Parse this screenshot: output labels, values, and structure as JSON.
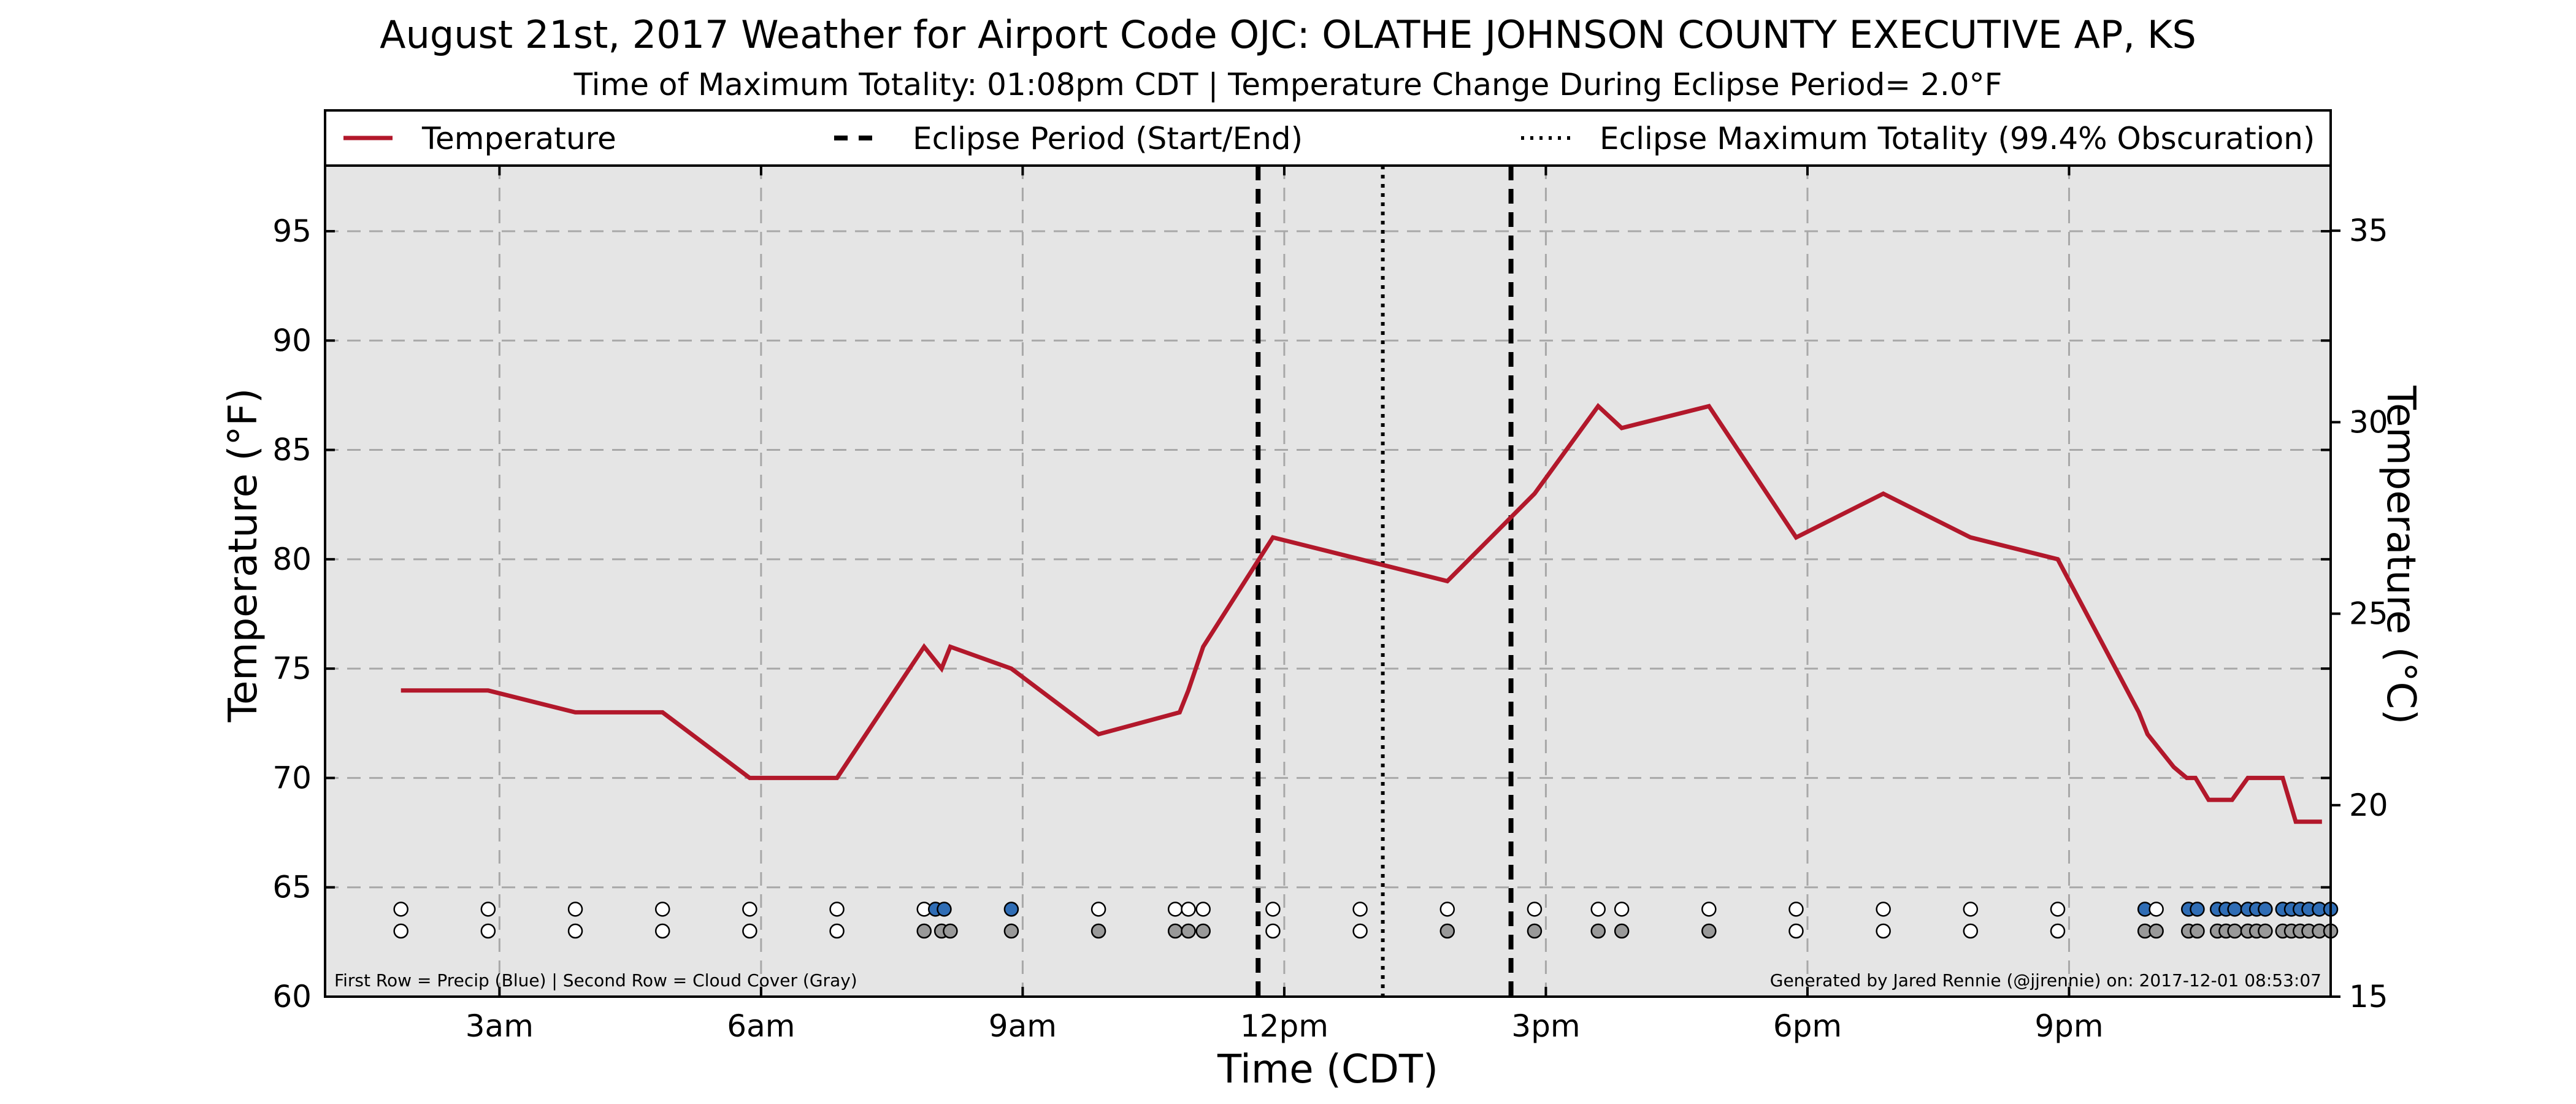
{
  "chart_data": {
    "type": "line",
    "title": "August 21st, 2017 Weather for Airport Code OJC: OLATHE JOHNSON COUNTY EXECUTIVE AP, KS",
    "subtitle": "Time of Maximum Totality: 01:08pm CDT | Temperature Change During Eclipse Period= 2.0°F",
    "xlabel": "Time (CDT)",
    "ylabel": "Temperature (°F)",
    "ylabel_right": "Temperature (°C)",
    "xlim": [
      1.0,
      24.0
    ],
    "ylim": [
      60,
      98
    ],
    "ylim_right_celsius": [
      15,
      36.7
    ],
    "x_ticks": [
      {
        "x": 3,
        "label": "3am"
      },
      {
        "x": 6,
        "label": "6am"
      },
      {
        "x": 9,
        "label": "9am"
      },
      {
        "x": 12,
        "label": "12pm"
      },
      {
        "x": 15,
        "label": "3pm"
      },
      {
        "x": 18,
        "label": "6pm"
      },
      {
        "x": 21,
        "label": "9pm"
      }
    ],
    "y_ticks": [
      60,
      65,
      70,
      75,
      80,
      85,
      90,
      95
    ],
    "y_ticks_right": [
      15,
      20,
      25,
      30,
      35
    ],
    "grid": true,
    "legend_position": "top",
    "legend": [
      {
        "label": "Temperature",
        "style": "solid",
        "color": "#b2182b"
      },
      {
        "label": "Eclipse Period (Start/End)",
        "style": "dashed",
        "color": "#000000"
      },
      {
        "label": "Eclipse Maximum Totality (99.4% Obscuration)",
        "style": "dotted",
        "color": "#000000"
      }
    ],
    "series": [
      {
        "name": "Temperature",
        "color": "#b2182b",
        "points": [
          [
            1.87,
            74
          ],
          [
            2.87,
            74
          ],
          [
            3.87,
            73
          ],
          [
            4.87,
            73
          ],
          [
            5.87,
            70
          ],
          [
            6.87,
            70
          ],
          [
            7.87,
            76
          ],
          [
            8.07,
            75
          ],
          [
            8.17,
            76
          ],
          [
            8.87,
            75
          ],
          [
            9.87,
            72
          ],
          [
            10.8,
            73
          ],
          [
            10.9,
            74
          ],
          [
            11.07,
            76
          ],
          [
            11.87,
            81
          ],
          [
            12.87,
            80
          ],
          [
            13.87,
            79
          ],
          [
            14.87,
            83
          ],
          [
            15.6,
            87
          ],
          [
            15.87,
            86
          ],
          [
            16.87,
            87
          ],
          [
            17.87,
            81
          ],
          [
            18.87,
            83
          ],
          [
            19.87,
            81
          ],
          [
            20.87,
            80
          ],
          [
            21.8,
            73
          ],
          [
            21.9,
            72
          ],
          [
            22.2,
            70.5
          ],
          [
            22.35,
            70
          ],
          [
            22.45,
            70
          ],
          [
            22.6,
            69
          ],
          [
            22.87,
            69
          ],
          [
            23.05,
            70
          ],
          [
            23.45,
            70
          ],
          [
            23.6,
            68
          ],
          [
            23.9,
            68
          ]
        ]
      }
    ],
    "eclipse_start": 11.7,
    "eclipse_end": 14.6,
    "eclipse_max": 13.13,
    "precip_row": {
      "color_precip": "#2f6db5",
      "color_none": "#ffffff",
      "points": [
        [
          1.87,
          false
        ],
        [
          2.87,
          false
        ],
        [
          3.87,
          false
        ],
        [
          4.87,
          false
        ],
        [
          5.87,
          false
        ],
        [
          6.87,
          false
        ],
        [
          7.87,
          false
        ],
        [
          8.0,
          true
        ],
        [
          8.1,
          true
        ],
        [
          8.87,
          true
        ],
        [
          9.87,
          false
        ],
        [
          10.75,
          false
        ],
        [
          10.9,
          false
        ],
        [
          11.07,
          false
        ],
        [
          11.87,
          false
        ],
        [
          12.87,
          false
        ],
        [
          13.87,
          false
        ],
        [
          14.87,
          false
        ],
        [
          15.6,
          false
        ],
        [
          15.87,
          false
        ],
        [
          16.87,
          false
        ],
        [
          17.87,
          false
        ],
        [
          18.87,
          false
        ],
        [
          19.87,
          false
        ],
        [
          20.87,
          false
        ],
        [
          21.87,
          true
        ],
        [
          22.0,
          false
        ],
        [
          22.37,
          true
        ],
        [
          22.47,
          true
        ],
        [
          22.7,
          true
        ],
        [
          22.8,
          true
        ],
        [
          22.9,
          true
        ],
        [
          23.05,
          true
        ],
        [
          23.15,
          true
        ],
        [
          23.25,
          true
        ],
        [
          23.45,
          true
        ],
        [
          23.55,
          true
        ],
        [
          23.65,
          true
        ],
        [
          23.75,
          true
        ],
        [
          23.87,
          true
        ],
        [
          24.0,
          true
        ]
      ]
    },
    "cloud_row": {
      "color_cloud": "#999999",
      "color_clear": "#ffffff",
      "points": [
        [
          1.87,
          false
        ],
        [
          2.87,
          false
        ],
        [
          3.87,
          false
        ],
        [
          4.87,
          false
        ],
        [
          5.87,
          false
        ],
        [
          6.87,
          false
        ],
        [
          7.87,
          true
        ],
        [
          8.07,
          true
        ],
        [
          8.17,
          true
        ],
        [
          8.87,
          true
        ],
        [
          9.87,
          true
        ],
        [
          10.75,
          true
        ],
        [
          10.9,
          true
        ],
        [
          11.07,
          true
        ],
        [
          11.87,
          false
        ],
        [
          12.87,
          false
        ],
        [
          13.87,
          true
        ],
        [
          14.87,
          true
        ],
        [
          15.6,
          true
        ],
        [
          15.87,
          true
        ],
        [
          16.87,
          true
        ],
        [
          17.87,
          false
        ],
        [
          18.87,
          false
        ],
        [
          19.87,
          false
        ],
        [
          20.87,
          false
        ],
        [
          21.87,
          true
        ],
        [
          22.0,
          true
        ],
        [
          22.37,
          true
        ],
        [
          22.47,
          true
        ],
        [
          22.7,
          true
        ],
        [
          22.8,
          true
        ],
        [
          22.9,
          true
        ],
        [
          23.05,
          true
        ],
        [
          23.15,
          true
        ],
        [
          23.25,
          true
        ],
        [
          23.45,
          true
        ],
        [
          23.55,
          true
        ],
        [
          23.65,
          true
        ],
        [
          23.75,
          true
        ],
        [
          23.87,
          true
        ],
        [
          24.0,
          true
        ]
      ]
    },
    "annotations": {
      "left": "First Row = Precip (Blue) | Second Row = Cloud Cover (Gray)",
      "right": "Generated by Jared Rennie (@jjrennie) on: 2017-12-01 08:53:07"
    }
  }
}
